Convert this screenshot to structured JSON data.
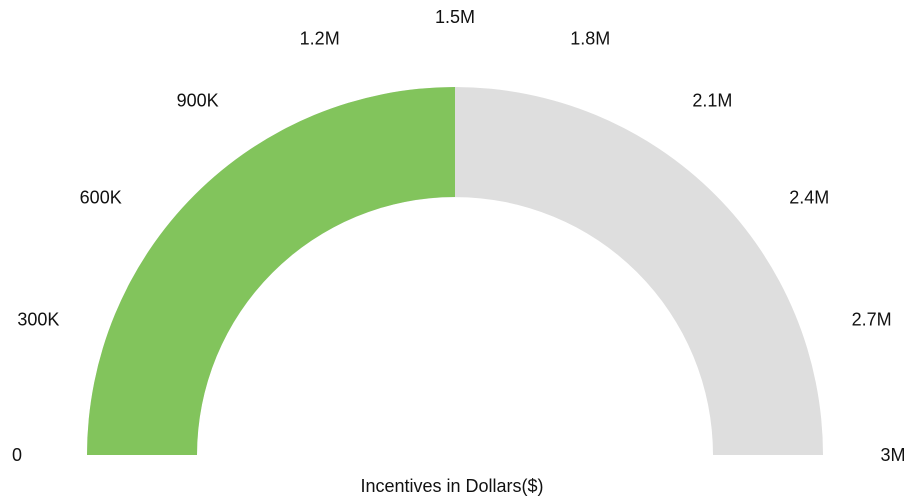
{
  "chart_data": {
    "type": "gauge",
    "min": 0,
    "max": 3000000,
    "value": 1500000,
    "ticks": [
      {
        "value": 0,
        "label": "0"
      },
      {
        "value": 300000,
        "label": "300K"
      },
      {
        "value": 600000,
        "label": "600K"
      },
      {
        "value": 900000,
        "label": "900K"
      },
      {
        "value": 1200000,
        "label": "1.2M"
      },
      {
        "value": 1500000,
        "label": "1.5M"
      },
      {
        "value": 1800000,
        "label": "1.8M"
      },
      {
        "value": 2100000,
        "label": "2.1M"
      },
      {
        "value": 2400000,
        "label": "2.4M"
      },
      {
        "value": 2700000,
        "label": "2.7M"
      },
      {
        "value": 3000000,
        "label": "3M"
      }
    ],
    "xlabel": "Incentives in Dollars($)",
    "colors": {
      "filled": "#82c45c",
      "track": "#dedede",
      "text": "#111111"
    }
  }
}
